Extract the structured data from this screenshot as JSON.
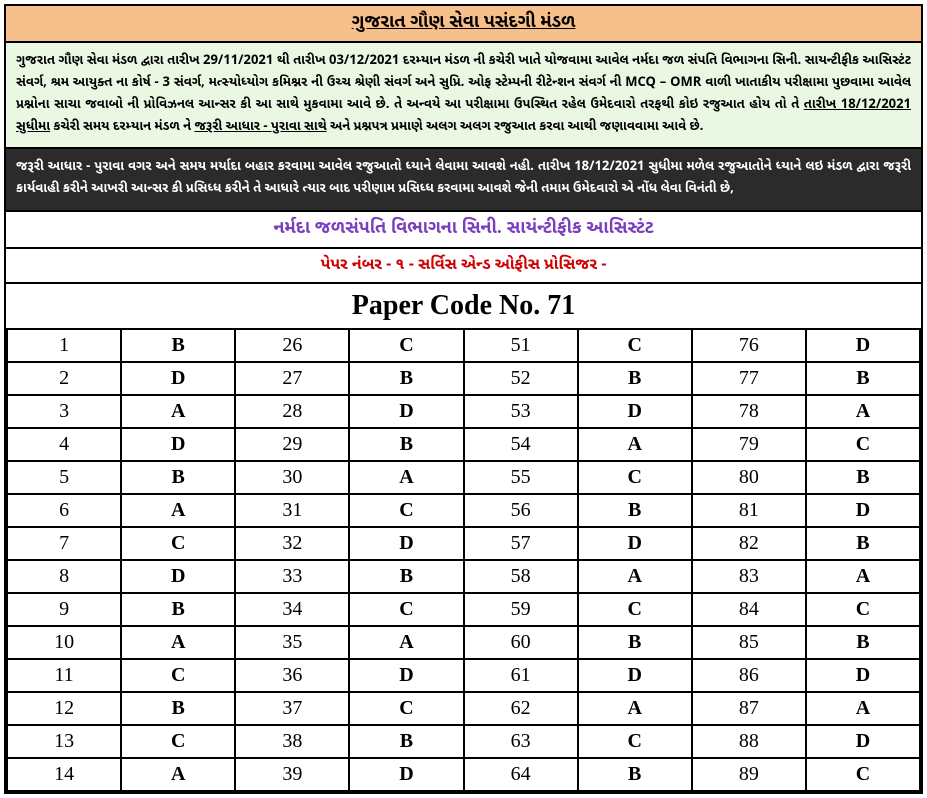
{
  "title": "ગુજરાત ગૌણ સેવા પસંદગી મંડળ",
  "notice1": "ગુજરાત ગૌણ સેવા મંડળ દ્વારા તારીખ 29/11/2021 થી તારીખ 03/12/2021 દરમ્યાન મંડળ ની કચેરી ખાતે યોજવામા આવેલ નર્મદા જળ સંપતિ વિભાગના સિની. સાયન્ટીફીક આસિસ્ટંટ સંવર્ગ, શ્રમ આયુક્ત ના કોર્ષ - 3 સંવર્ગ, મત્સ્યોધ્યોગ કમિશ્નર ની ઉચ્ચ શ્રેણી સંવર્ગ અને સુપ્રિ. ઓફ સ્ટેમ્પની રીટેન્શન સંવર્ગ ની MCQ – OMR વાળી ખાતાકીય પરીક્ષામા પુછવામા આવેલ પ્રશ્નોના સાચા જવાબો ની પ્રોવિઝનલ આન્સર કી આ સાથે મુકવામા આવે છે. તે અન્વયે આ પરીક્ષામા ઉપસ્થિત રહેલ ઉમેદવારો તરફથી કોઇ રજુઆત હોય તો તે <u>તારીખ 18/12/2021 સુધીમા</u> કચેરી સમય દરમ્યાન મંડળ ને <u>જરૂરી આધાર - પુરાવા સાથે</u> અને પ્રશ્નપત્ર પ્રમાણે અલગ અલગ રજુઆત કરવા આથી જણાવવામા આવે છે.",
  "notice2": "જરૂરી આધાર - પુરાવા વગર અને સમય મર્યાદા બહાર કરવામા આવેલ રજુઆતો ધ્યાને લેવામા આવશે નહી. તારીખ 18/12/2021 સુધીમા મળેલ રજુઆતોને ધ્યાને લઇ મંડળ દ્વારા જરૂરી કાર્યવાહી કરીને આખરી આન્સર કી પ્રસિધ્ધ કરીને તે આધારે ત્યાર બાદ પરીણામ પ્રસિધ્ધ કરવામા આવશે જેની તમામ ઉમેદવારો એ નોંધ લેવા વિનંતી છે,",
  "sub1": "નર્મદા જળસંપતિ વિભાગના સિની. સાયંન્ટીફીક આસિસ્ટંટ",
  "sub2": "પેપર નંબર - ૧ - સર્વિસ એન્ડ ઓફીસ પ્રોસિજર -",
  "paper_code": "Paper Code No. 71",
  "colors": {
    "title_bg": "#f7c08a",
    "notice1_bg": "#e9f7e3",
    "notice2_bg": "#2b2b2b",
    "sub1_color": "#7a3fbf",
    "sub2_color": "#d10000"
  },
  "answers": {
    "col1": [
      {
        "q": "1",
        "a": "B"
      },
      {
        "q": "2",
        "a": "D"
      },
      {
        "q": "3",
        "a": "A"
      },
      {
        "q": "4",
        "a": "D"
      },
      {
        "q": "5",
        "a": "B"
      },
      {
        "q": "6",
        "a": "A"
      },
      {
        "q": "7",
        "a": "C"
      },
      {
        "q": "8",
        "a": "D"
      },
      {
        "q": "9",
        "a": "B"
      },
      {
        "q": "10",
        "a": "A"
      },
      {
        "q": "11",
        "a": "C"
      },
      {
        "q": "12",
        "a": "B"
      },
      {
        "q": "13",
        "a": "C"
      },
      {
        "q": "14",
        "a": "A"
      }
    ],
    "col2": [
      {
        "q": "26",
        "a": "C"
      },
      {
        "q": "27",
        "a": "B"
      },
      {
        "q": "28",
        "a": "D"
      },
      {
        "q": "29",
        "a": "B"
      },
      {
        "q": "30",
        "a": "A"
      },
      {
        "q": "31",
        "a": "C"
      },
      {
        "q": "32",
        "a": "D"
      },
      {
        "q": "33",
        "a": "B"
      },
      {
        "q": "34",
        "a": "C"
      },
      {
        "q": "35",
        "a": "A"
      },
      {
        "q": "36",
        "a": "D"
      },
      {
        "q": "37",
        "a": "C"
      },
      {
        "q": "38",
        "a": "B"
      },
      {
        "q": "39",
        "a": "D"
      }
    ],
    "col3": [
      {
        "q": "51",
        "a": "C"
      },
      {
        "q": "52",
        "a": "B"
      },
      {
        "q": "53",
        "a": "D"
      },
      {
        "q": "54",
        "a": "A"
      },
      {
        "q": "55",
        "a": "C"
      },
      {
        "q": "56",
        "a": "B"
      },
      {
        "q": "57",
        "a": "D"
      },
      {
        "q": "58",
        "a": "A"
      },
      {
        "q": "59",
        "a": "C"
      },
      {
        "q": "60",
        "a": "B"
      },
      {
        "q": "61",
        "a": "D"
      },
      {
        "q": "62",
        "a": "A"
      },
      {
        "q": "63",
        "a": "C"
      },
      {
        "q": "64",
        "a": "B"
      }
    ],
    "col4": [
      {
        "q": "76",
        "a": "D"
      },
      {
        "q": "77",
        "a": "B"
      },
      {
        "q": "78",
        "a": "A"
      },
      {
        "q": "79",
        "a": "C"
      },
      {
        "q": "80",
        "a": "B"
      },
      {
        "q": "81",
        "a": "D"
      },
      {
        "q": "82",
        "a": "B"
      },
      {
        "q": "83",
        "a": "A"
      },
      {
        "q": "84",
        "a": "C"
      },
      {
        "q": "85",
        "a": "B"
      },
      {
        "q": "86",
        "a": "D"
      },
      {
        "q": "87",
        "a": "A"
      },
      {
        "q": "88",
        "a": "D"
      },
      {
        "q": "89",
        "a": "C"
      }
    ]
  }
}
